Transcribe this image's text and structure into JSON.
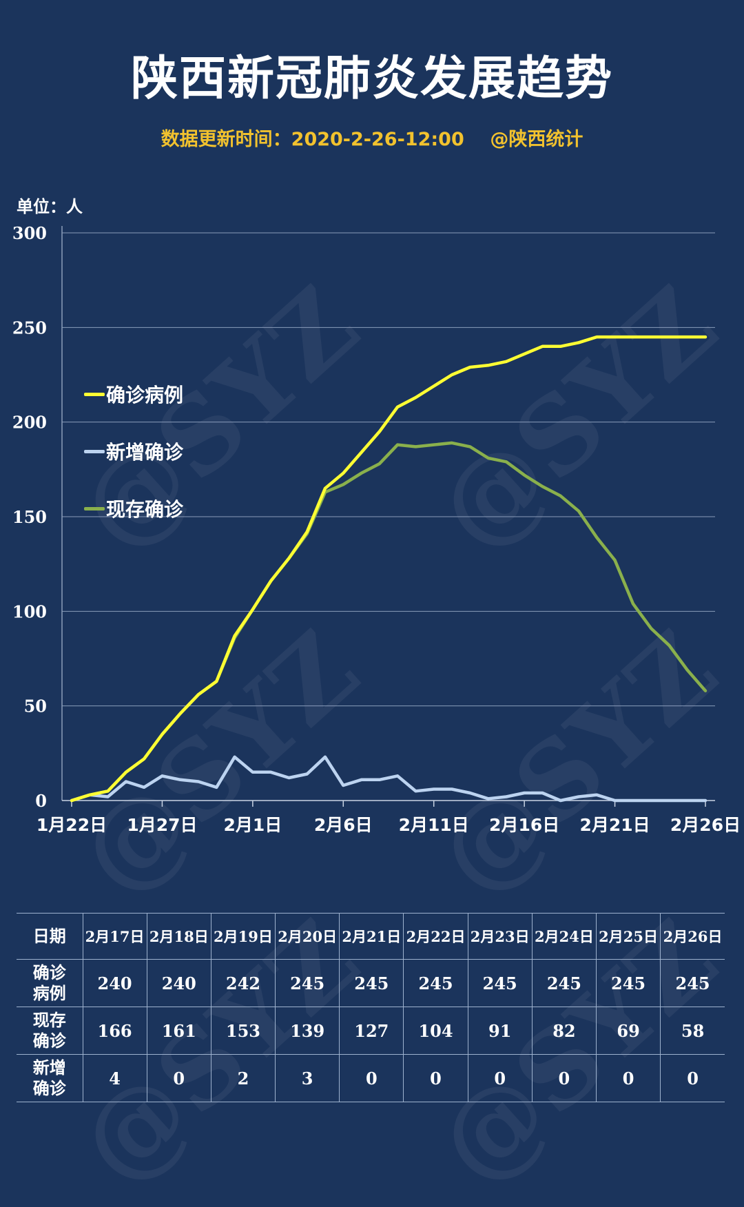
{
  "title": "陕西新冠肺炎发展趋势",
  "subtitle": "数据更新时间：2020-2-26-12:00    @陕西统计",
  "watermark": "@SYZ",
  "unit_label": "单位：人",
  "colors": {
    "background": "#1b345c",
    "confirmed": "#ffff33",
    "new": "#bcd3f0",
    "current": "#8ab04c",
    "subtitle": "#f2c22e"
  },
  "chart_data": {
    "type": "line",
    "x": [
      "1月22日",
      "1月23日",
      "1月24日",
      "1月25日",
      "1月26日",
      "1月27日",
      "1月28日",
      "1月29日",
      "1月30日",
      "1月31日",
      "2月1日",
      "2月2日",
      "2月3日",
      "2月4日",
      "2月5日",
      "2月6日",
      "2月7日",
      "2月8日",
      "2月9日",
      "2月10日",
      "2月11日",
      "2月12日",
      "2月13日",
      "2月14日",
      "2月15日",
      "2月16日",
      "2月17日",
      "2月18日",
      "2月19日",
      "2月20日",
      "2月21日",
      "2月22日",
      "2月23日",
      "2月24日",
      "2月25日",
      "2月26日"
    ],
    "x_tick_labels": [
      "1月22日",
      "1月27日",
      "2月1日",
      "2月6日",
      "2月11日",
      "2月16日",
      "2月21日",
      "2月26日"
    ],
    "ylim": [
      0,
      300
    ],
    "yticks": [
      0,
      50,
      100,
      150,
      200,
      250,
      300
    ],
    "grid": true,
    "legend_position": "left",
    "series": [
      {
        "name": "确诊病例",
        "color_key": "confirmed",
        "values": [
          0,
          3,
          5,
          15,
          22,
          35,
          46,
          56,
          63,
          87,
          101,
          116,
          128,
          142,
          165,
          173,
          184,
          195,
          208,
          213,
          219,
          225,
          229,
          230,
          232,
          236,
          240,
          240,
          242,
          245,
          245,
          245,
          245,
          245,
          245,
          245
        ]
      },
      {
        "name": "新增确诊",
        "color_key": "new",
        "values": [
          0,
          3,
          2,
          10,
          7,
          13,
          11,
          10,
          7,
          23,
          15,
          15,
          12,
          14,
          23,
          8,
          11,
          11,
          13,
          5,
          6,
          6,
          4,
          1,
          2,
          4,
          4,
          0,
          2,
          3,
          0,
          0,
          0,
          0,
          0,
          0
        ]
      },
      {
        "name": "现存确诊",
        "color_key": "current",
        "values": [
          0,
          3,
          5,
          15,
          22,
          35,
          46,
          56,
          63,
          86,
          101,
          116,
          128,
          141,
          163,
          167,
          173,
          178,
          188,
          187,
          188,
          189,
          187,
          181,
          179,
          172,
          166,
          161,
          153,
          139,
          127,
          104,
          91,
          82,
          69,
          58
        ]
      }
    ]
  },
  "table": {
    "headers": [
      "日期",
      "2月17日",
      "2月18日",
      "2月19日",
      "2月20日",
      "2月21日",
      "2月22日",
      "2月23日",
      "2月24日",
      "2月25日",
      "2月26日"
    ],
    "rows": [
      {
        "label": "确诊\n病例",
        "values": [
          "240",
          "240",
          "242",
          "245",
          "245",
          "245",
          "245",
          "245",
          "245",
          "245"
        ]
      },
      {
        "label": "现存\n确诊",
        "values": [
          "166",
          "161",
          "153",
          "139",
          "127",
          "104",
          "91",
          "82",
          "69",
          "58"
        ]
      },
      {
        "label": "新增\n确诊",
        "values": [
          "4",
          "0",
          "2",
          "3",
          "0",
          "0",
          "0",
          "0",
          "0",
          "0"
        ]
      }
    ]
  }
}
